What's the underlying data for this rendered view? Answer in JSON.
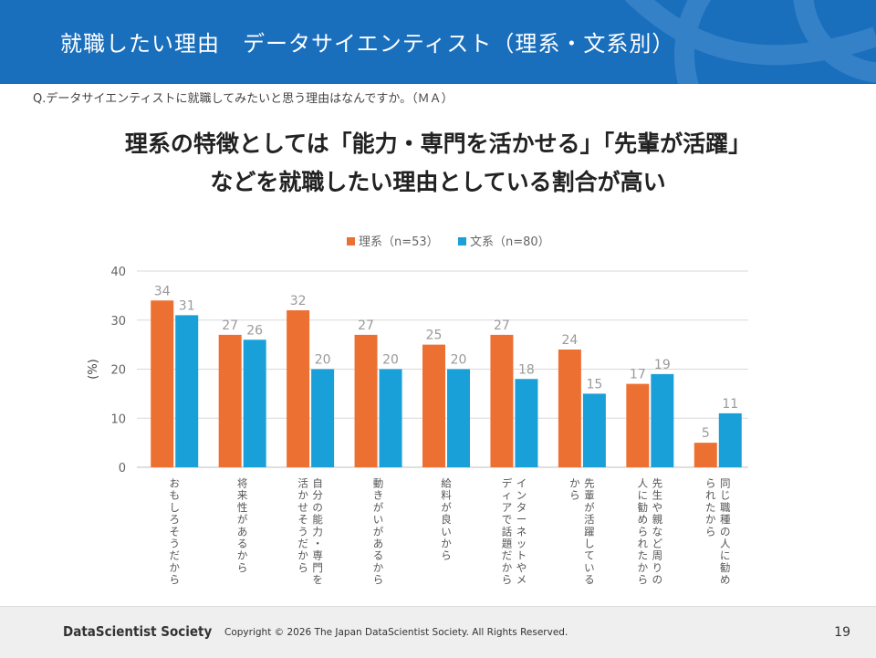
{
  "header": {
    "title": "就職したい理由　データサイエンティスト（理系・文系別）"
  },
  "question": "Q.データサイエンティストに就職してみたいと思う理由はなんですか。（ＭＡ）",
  "headline": {
    "line1": "理系の特徴としては「能力・専門を活かせる」「先輩が活躍」",
    "line2": "などを就職したい理由としている割合が高い"
  },
  "colors": {
    "header": "#1a6fbd",
    "rikei": "#ed7033",
    "bunkei": "#1aa0d8"
  },
  "chart_data": {
    "type": "bar",
    "ylabel": "(%)",
    "ylim": [
      0,
      40
    ],
    "yticks": [
      0,
      10,
      20,
      30,
      40
    ],
    "grid": true,
    "legend_position": "top",
    "categories": [
      [
        "おもしろそうだから"
      ],
      [
        "将来性があるから"
      ],
      [
        "自分の能力・専門を",
        "活かせそうだから"
      ],
      [
        "動きがいがあるから"
      ],
      [
        "給料が良いから"
      ],
      [
        "インターネットやメ",
        "ディアで話題だから"
      ],
      [
        "先輩が活躍している",
        "から"
      ],
      [
        "先生や親など周りの",
        "人に勧められたから"
      ],
      [
        "同じ職種の人に勧め",
        "られたから"
      ]
    ],
    "series": [
      {
        "name": "理系（n=53）",
        "color": "#ed7033",
        "values": [
          34,
          27,
          32,
          27,
          25,
          27,
          24,
          17,
          5
        ]
      },
      {
        "name": "文系（n=80）",
        "color": "#1aa0d8",
        "values": [
          31,
          26,
          20,
          20,
          20,
          18,
          15,
          19,
          11
        ]
      }
    ]
  },
  "footer": {
    "logo": "DataScientist Society",
    "copyright": "Copyright © 2026  The Japan DataScientist Society. All Rights Reserved.",
    "page": "19"
  }
}
